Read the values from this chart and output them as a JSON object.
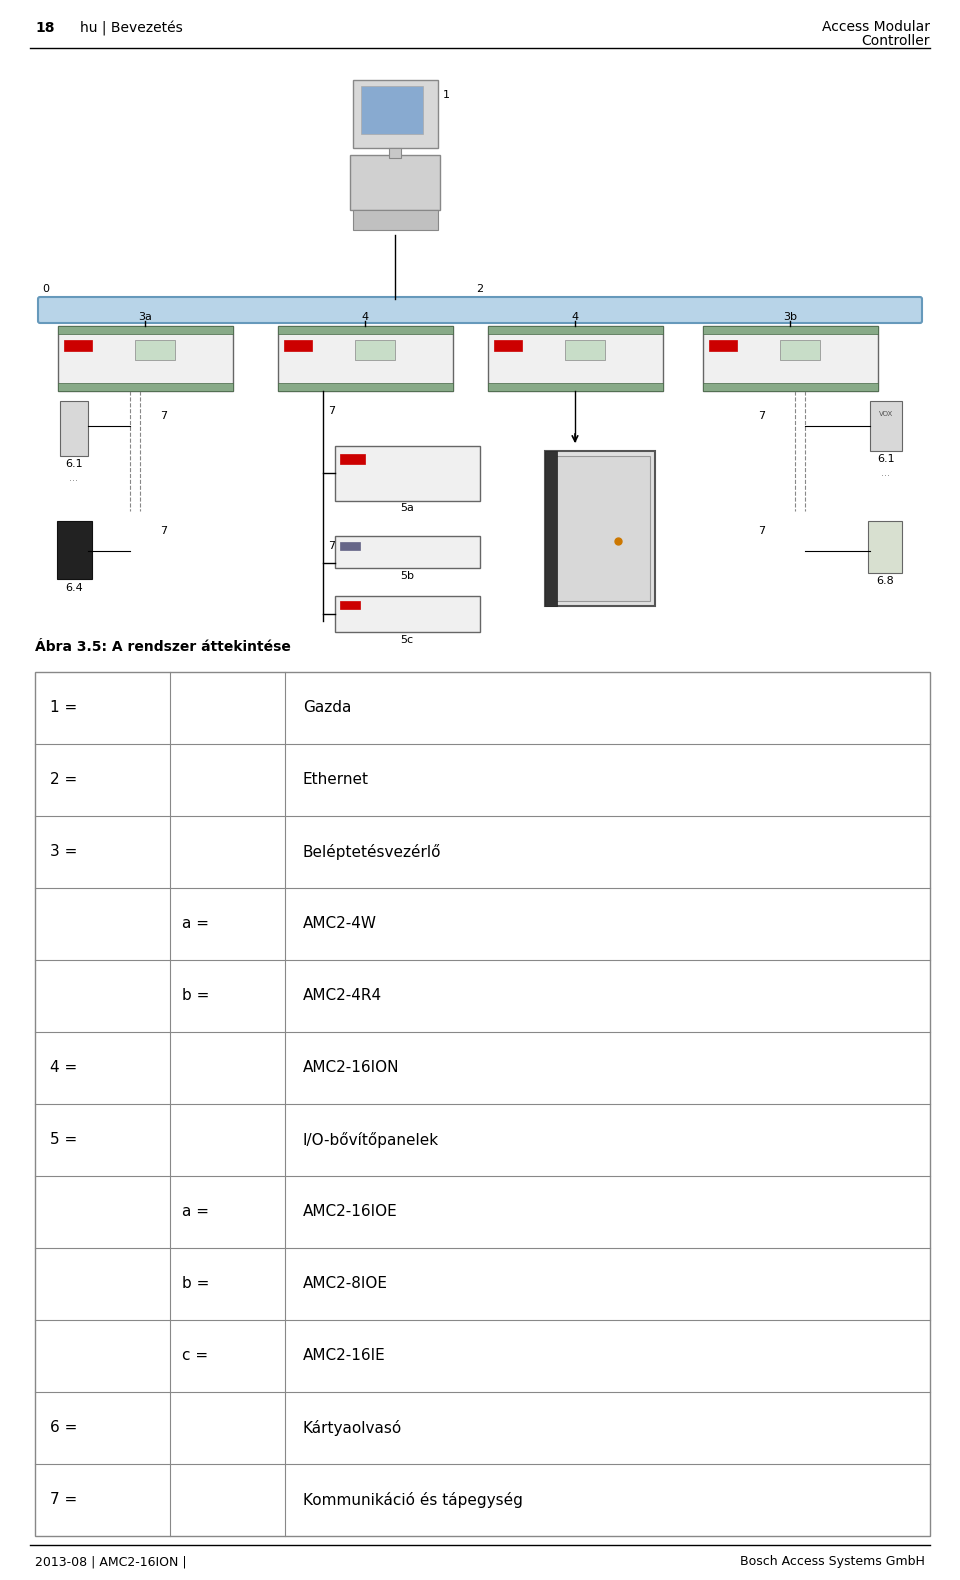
{
  "page_number": "18",
  "page_left_text": "hu | Bevezetés",
  "page_right_text_line1": "Access Modular",
  "page_right_text_line2": "Controller",
  "footer_left": "2013-08 | AMC2-16ION |",
  "footer_right": "Bosch Access Systems GmbH",
  "figure_caption": "Ábra 3.5: A rendszer áttekintése",
  "table_rows": [
    {
      "col1": "1 =",
      "col2": "",
      "col3": "Gazda"
    },
    {
      "col1": "2 =",
      "col2": "",
      "col3": "Ethernet"
    },
    {
      "col1": "3 =",
      "col2": "",
      "col3": "Beléptetésvezérlő"
    },
    {
      "col1": "",
      "col2": "a =",
      "col3": "AMC2-4W"
    },
    {
      "col1": "",
      "col2": "b =",
      "col3": "AMC2-4R4"
    },
    {
      "col1": "4 =",
      "col2": "",
      "col3": "AMC2-16ION"
    },
    {
      "col1": "5 =",
      "col2": "",
      "col3": "I/O-bővítőpanelek"
    },
    {
      "col1": "",
      "col2": "a =",
      "col3": "AMC2-16IOE"
    },
    {
      "col1": "",
      "col2": "b =",
      "col3": "AMC2-8IOE"
    },
    {
      "col1": "",
      "col2": "c =",
      "col3": "AMC2-16IE"
    },
    {
      "col1": "6 =",
      "col2": "",
      "col3": "Kártyaolvasó"
    },
    {
      "col1": "7 =",
      "col2": "",
      "col3": "Kommunikáció és tápegység"
    }
  ],
  "bg_color": "#ffffff",
  "bus_color": "#b8d4e8",
  "bus_border_color": "#6699bb",
  "text_color": "#000000",
  "table_border_color": "#888888",
  "header_fontsize": 10,
  "footer_fontsize": 9,
  "caption_fontsize": 10,
  "table_fontsize": 11,
  "diagram_label_fontsize": 8
}
